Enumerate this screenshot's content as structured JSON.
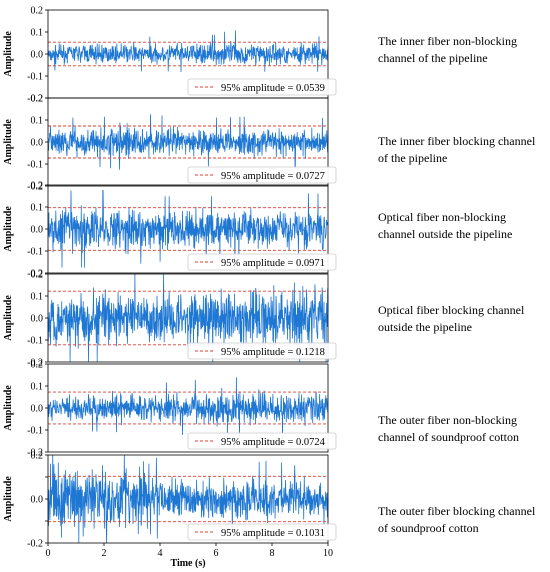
{
  "chart_data": [
    {
      "type": "line",
      "ylabel": "Amplitude",
      "xlabel": "",
      "xlim": [
        0,
        10
      ],
      "ylim": [
        -0.2,
        0.2
      ],
      "yticks": [
        "0.2",
        "0.1",
        "0.0",
        "-0.1",
        "-0.2"
      ],
      "xticks": [],
      "signal_color": "#1f77d4",
      "threshold_color": "#e03c31",
      "threshold": 0.0539,
      "legend": "95% amplitude = 0.0539",
      "legend_position": "lower-right",
      "envelope": [
        [
          0,
          0.055
        ],
        [
          2,
          0.06
        ],
        [
          4,
          0.058
        ],
        [
          6,
          0.065
        ],
        [
          6.6,
          0.085
        ],
        [
          7,
          0.06
        ],
        [
          10,
          0.06
        ]
      ],
      "caption": "The inner fiber non-blocking channel of the pipeline"
    },
    {
      "type": "line",
      "ylabel": "Amplitude",
      "xlabel": "",
      "xlim": [
        0,
        10
      ],
      "ylim": [
        -0.2,
        0.2
      ],
      "yticks": [
        "0.2",
        "0.1",
        "0.0",
        "-0.1",
        "-0.2"
      ],
      "xticks": [],
      "signal_color": "#1f77d4",
      "threshold_color": "#e03c31",
      "threshold": 0.0727,
      "legend": "95% amplitude = 0.0727",
      "legend_position": "lower-right",
      "envelope": [
        [
          0,
          0.08
        ],
        [
          2,
          0.085
        ],
        [
          3,
          0.1
        ],
        [
          5,
          0.08
        ],
        [
          7,
          0.085
        ],
        [
          8,
          0.09
        ],
        [
          10,
          0.08
        ]
      ],
      "caption": "The inner fiber blocking channel of the pipeline"
    },
    {
      "type": "line",
      "ylabel": "Amplitude",
      "xlabel": "",
      "xlim": [
        0,
        10
      ],
      "ylim": [
        -0.2,
        0.2
      ],
      "yticks": [
        "0.2",
        "0.1",
        "0.0",
        "-0.1",
        "-0.2"
      ],
      "xticks": [],
      "signal_color": "#1f77d4",
      "threshold_color": "#e03c31",
      "threshold": 0.0971,
      "legend": "95% amplitude = 0.0971",
      "legend_position": "lower-right",
      "envelope": [
        [
          0,
          0.13
        ],
        [
          2,
          0.13
        ],
        [
          4,
          0.11
        ],
        [
          6,
          0.11
        ],
        [
          8,
          0.12
        ],
        [
          10,
          0.12
        ]
      ],
      "caption": "Optical fiber non-blocking channel outside the pipeline"
    },
    {
      "type": "line",
      "ylabel": "Amplitude",
      "xlabel": "",
      "xlim": [
        0,
        10
      ],
      "ylim": [
        -0.2,
        0.2
      ],
      "yticks": [
        "0.2",
        "0.1",
        "0.0",
        "-0.1",
        "-0.2"
      ],
      "xticks": [],
      "signal_color": "#1f77d4",
      "threshold_color": "#e03c31",
      "threshold": 0.1218,
      "legend": "95% amplitude = 0.1218",
      "legend_position": "lower-right",
      "envelope": [
        [
          0,
          0.16
        ],
        [
          2,
          0.16
        ],
        [
          4,
          0.15
        ],
        [
          6,
          0.17
        ],
        [
          8,
          0.18
        ],
        [
          10,
          0.19
        ]
      ],
      "caption": "Optical fiber blocking channel outside the pipeline"
    },
    {
      "type": "line",
      "ylabel": "Amplitude",
      "xlabel": "",
      "xlim": [
        0,
        10
      ],
      "ylim": [
        -0.2,
        0.2
      ],
      "yticks": [
        "0.2",
        "0.1",
        "0.0",
        "-0.1",
        "-0.2"
      ],
      "xticks": [],
      "signal_color": "#1f77d4",
      "threshold_color": "#e03c31",
      "threshold": 0.0724,
      "legend": "95% amplitude = 0.0724",
      "legend_position": "lower-right",
      "envelope": [
        [
          0,
          0.075
        ],
        [
          2,
          0.08
        ],
        [
          4,
          0.085
        ],
        [
          6,
          0.1
        ],
        [
          8,
          0.11
        ],
        [
          9,
          0.1
        ],
        [
          10,
          0.09
        ]
      ],
      "caption": "The outer fiber non-blocking channel of soundproof cotton"
    },
    {
      "type": "line",
      "ylabel": "Amplitude",
      "xlabel": "Time (s)",
      "xlim": [
        0,
        10
      ],
      "ylim": [
        -0.2,
        0.2
      ],
      "yticks": [
        "0.2",
        "",
        "0.0",
        "",
        "-0.2"
      ],
      "xticks": [
        "0",
        "2",
        "4",
        "6",
        "8",
        "10"
      ],
      "signal_color": "#1f77d4",
      "threshold_color": "#e03c31",
      "threshold": 0.1031,
      "legend": "95% amplitude = 0.1031",
      "legend_position": "lower-right",
      "envelope": [
        [
          0,
          0.19
        ],
        [
          3.5,
          0.19
        ],
        [
          4,
          0.12
        ],
        [
          6,
          0.11
        ],
        [
          8,
          0.13
        ],
        [
          10,
          0.09
        ]
      ],
      "caption": "The outer fiber blocking channel of soundproof cotton"
    }
  ]
}
